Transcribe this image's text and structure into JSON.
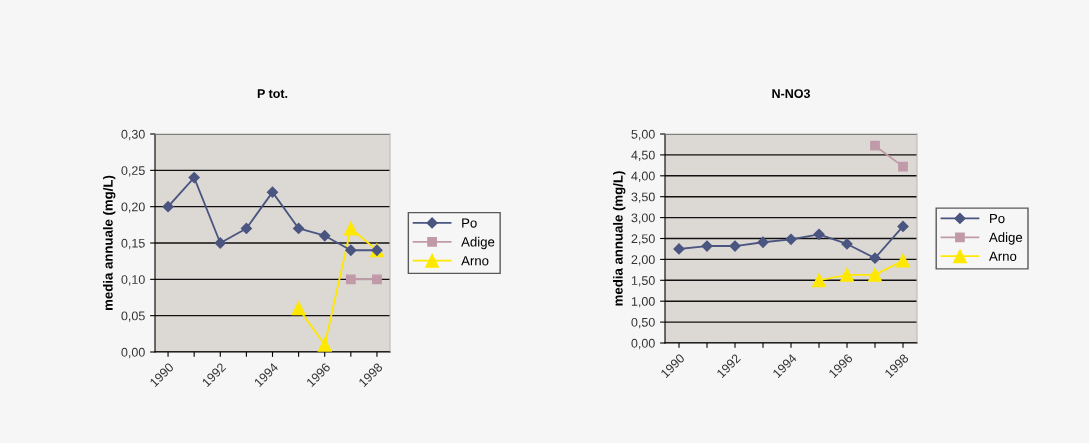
{
  "chart_data": [
    {
      "type": "line",
      "title": "P tot.",
      "ylabel": "media annuale (mg/L)",
      "categories": [
        "1990",
        null,
        "1992",
        null,
        "1994",
        null,
        "1996",
        null,
        "1998"
      ],
      "series": [
        {
          "name": "Po",
          "color": "#4a5580",
          "marker": "diamond",
          "values": [
            0.2,
            0.24,
            0.15,
            0.17,
            0.22,
            0.17,
            0.16,
            0.14,
            0.14
          ]
        },
        {
          "name": "Adige",
          "color": "#c09aa8",
          "marker": "square",
          "values": [
            null,
            null,
            null,
            null,
            null,
            null,
            null,
            0.1,
            0.1
          ]
        },
        {
          "name": "Arno",
          "color": "#ffe800",
          "marker": "triangle",
          "values": [
            null,
            null,
            null,
            null,
            null,
            0.06,
            0.01,
            0.17,
            0.14
          ]
        }
      ],
      "ylim": [
        0,
        0.3
      ],
      "yticks": [
        {
          "value": 0,
          "label": "0,00"
        },
        {
          "value": 0.05,
          "label": "0,05"
        },
        {
          "value": 0.1,
          "label": "0,10"
        },
        {
          "value": 0.15,
          "label": "0,15"
        },
        {
          "value": 0.2,
          "label": "0,20"
        },
        {
          "value": 0.25,
          "label": "0,25"
        },
        {
          "value": 0.3,
          "label": "0,30"
        }
      ],
      "grid": "y",
      "legend": "right"
    },
    {
      "type": "line",
      "title": "N-NO3",
      "ylabel": "media annuale (mg/L)",
      "categories": [
        "1990",
        null,
        "1992",
        null,
        "1994",
        null,
        "1996",
        null,
        "1998"
      ],
      "series": [
        {
          "name": "Po",
          "color": "#4a5580",
          "marker": "diamond",
          "values": [
            2.25,
            2.32,
            2.32,
            2.41,
            2.48,
            2.6,
            2.37,
            2.03,
            2.79
          ]
        },
        {
          "name": "Adige",
          "color": "#c09aa8",
          "marker": "square",
          "values": [
            null,
            null,
            null,
            null,
            null,
            null,
            null,
            4.72,
            4.22
          ]
        },
        {
          "name": "Arno",
          "color": "#ffe800",
          "marker": "triangle",
          "values": [
            null,
            null,
            null,
            null,
            null,
            1.5,
            1.63,
            1.63,
            1.97
          ]
        }
      ],
      "ylim": [
        0,
        5
      ],
      "yticks": [
        {
          "value": 0,
          "label": "0,00"
        },
        {
          "value": 0.5,
          "label": "0,50"
        },
        {
          "value": 1,
          "label": "1,00"
        },
        {
          "value": 1.5,
          "label": "1,50"
        },
        {
          "value": 2,
          "label": "2,00"
        },
        {
          "value": 2.5,
          "label": "2,50"
        },
        {
          "value": 3,
          "label": "3,00"
        },
        {
          "value": 3.5,
          "label": "3,50"
        },
        {
          "value": 4,
          "label": "4,00"
        },
        {
          "value": 4.5,
          "label": "4,50"
        },
        {
          "value": 5,
          "label": "5,00"
        }
      ],
      "grid": "y",
      "legend": "right"
    }
  ]
}
